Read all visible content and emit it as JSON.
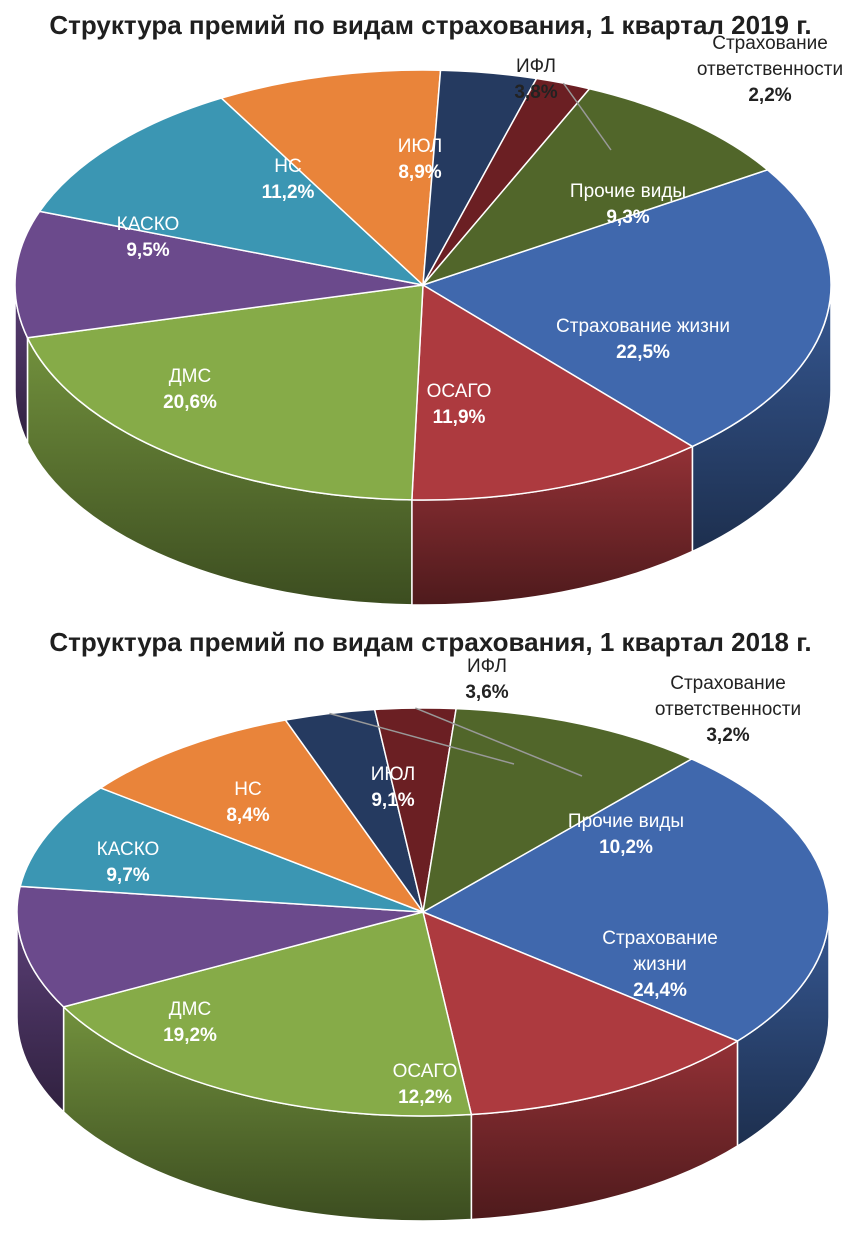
{
  "chart_data": [
    {
      "type": "pie",
      "title": "Структура премий по видам страхования, 1 квартал 2019 г.",
      "slices": [
        {
          "label": "Страхование жизни",
          "value": 22.5,
          "value_label": "22,5%",
          "color": "#4068ad"
        },
        {
          "label": "ОСАГО",
          "value": 11.9,
          "value_label": "11,9%",
          "color": "#ad3a3f"
        },
        {
          "label": "ДМС",
          "value": 20.6,
          "value_label": "20,6%",
          "color": "#86ab48"
        },
        {
          "label": "КАСКО",
          "value": 9.5,
          "value_label": "9,5%",
          "color": "#6b4a8c"
        },
        {
          "label": "НС",
          "value": 11.2,
          "value_label": "11,2%",
          "color": "#3b96b3"
        },
        {
          "label": "ИЮЛ",
          "value": 8.9,
          "value_label": "8,9%",
          "color": "#e9843a"
        },
        {
          "label": "ИФЛ",
          "value": 3.8,
          "value_label": "3,8%",
          "color": "#253a60"
        },
        {
          "label": "Страхование ответственности",
          "value": 2.2,
          "value_label": "2,2%",
          "color": "#6b1f23"
        },
        {
          "label": "Прочие виды",
          "value": 9.3,
          "value_label": "9,3%",
          "color": "#51662a"
        }
      ]
    },
    {
      "type": "pie",
      "title": "Структура премий по видам страхования, 1 квартал 2018 г.",
      "slices": [
        {
          "label": "Страхование жизни",
          "value": 24.4,
          "value_label": "24,4%",
          "color": "#4068ad"
        },
        {
          "label": "ОСАГО",
          "value": 12.2,
          "value_label": "12,2%",
          "color": "#ad3a3f"
        },
        {
          "label": "ДМС",
          "value": 19.2,
          "value_label": "19,2%",
          "color": "#86ab48"
        },
        {
          "label": "КАСКО",
          "value": 9.7,
          "value_label": "9,7%",
          "color": "#6b4a8c"
        },
        {
          "label": "НС",
          "value": 8.4,
          "value_label": "8,4%",
          "color": "#3b96b3"
        },
        {
          "label": "ИЮЛ",
          "value": 9.1,
          "value_label": "9,1%",
          "color": "#e9843a"
        },
        {
          "label": "ИФЛ",
          "value": 3.6,
          "value_label": "3,6%",
          "color": "#253a60"
        },
        {
          "label": "Страхование ответственности",
          "value": 3.2,
          "value_label": "3,2%",
          "color": "#6b1f23"
        },
        {
          "label": "Прочие виды",
          "value": 10.2,
          "value_label": "10,2%",
          "color": "#51662a"
        }
      ]
    }
  ]
}
